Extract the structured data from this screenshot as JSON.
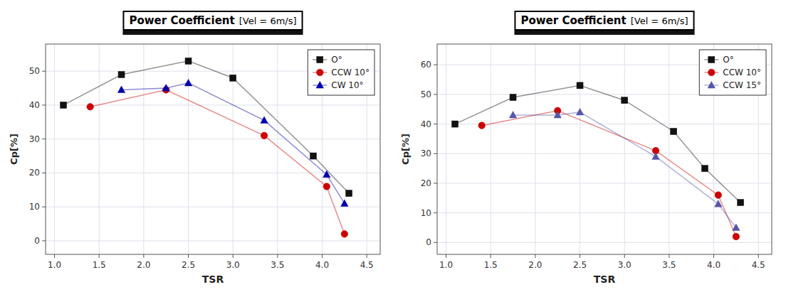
{
  "chart_data": [
    {
      "type": "line",
      "title": "Power Coefficient",
      "subtitle": "[Vel = 6m/s]",
      "x_label": "TSR",
      "y_label": "Cp[%]",
      "xlim": [
        0.9,
        4.65
      ],
      "xticks": [
        {
          "value": 1,
          "label": "1.0"
        },
        1.5,
        {
          "value": 2,
          "label": "2.0"
        },
        2.5,
        {
          "value": 3,
          "label": "3.0"
        },
        3.5,
        {
          "value": 4,
          "label": "4.0"
        },
        4.5
      ],
      "ylim": [
        -4,
        58
      ],
      "yticks": [
        0,
        10,
        20,
        30,
        40,
        50
      ],
      "grid": true,
      "legend": "upper right",
      "series": [
        {
          "name": "O°",
          "color": "#111111",
          "marker": "square",
          "x": [
            1.1,
            1.75,
            2.5,
            3.0,
            3.9,
            4.3
          ],
          "values": [
            40,
            49,
            53,
            48,
            25,
            14
          ]
        },
        {
          "name": "CCW 10°",
          "color": "#cc0000",
          "marker": "circle",
          "x": [
            1.4,
            2.25,
            3.35,
            4.05,
            4.25
          ],
          "values": [
            39.5,
            44.5,
            31,
            16,
            2
          ]
        },
        {
          "name": "CW 10°",
          "color": "#0000aa",
          "marker": "triangle",
          "x": [
            1.75,
            2.25,
            2.5,
            3.35,
            4.05,
            4.25
          ],
          "values": [
            44.5,
            45,
            46.5,
            35.5,
            19.5,
            11
          ]
        }
      ]
    },
    {
      "type": "line",
      "title": "Power Coefficient",
      "subtitle": "[Vel = 6m/s]",
      "x_label": "TSR",
      "y_label": "Cp[%]",
      "xlim": [
        0.9,
        4.65
      ],
      "xticks": [
        {
          "value": 1,
          "label": "1.0"
        },
        1.5,
        {
          "value": 2,
          "label": "2.0"
        },
        2.5,
        {
          "value": 3,
          "label": "3.0"
        },
        3.5,
        {
          "value": 4,
          "label": "4.0"
        },
        4.5
      ],
      "ylim": [
        -4,
        67
      ],
      "yticks": [
        0,
        10,
        20,
        30,
        40,
        50,
        60
      ],
      "grid": true,
      "legend": "upper right",
      "series": [
        {
          "name": "O°",
          "color": "#111111",
          "marker": "square",
          "x": [
            1.1,
            1.75,
            2.5,
            3.0,
            3.55,
            3.9,
            4.3
          ],
          "values": [
            40,
            49,
            53,
            48,
            37.5,
            25,
            13.5
          ]
        },
        {
          "name": "CCW 10°",
          "color": "#cc0000",
          "marker": "circle",
          "x": [
            1.4,
            2.25,
            3.35,
            4.05,
            4.25
          ],
          "values": [
            39.5,
            44.5,
            31,
            16,
            2
          ]
        },
        {
          "name": "CCW 15°",
          "color": "#5555aa",
          "marker": "triangle",
          "x": [
            1.75,
            2.25,
            2.5,
            3.35,
            4.05,
            4.25
          ],
          "values": [
            43,
            43,
            44,
            29,
            13,
            5
          ]
        }
      ]
    }
  ]
}
